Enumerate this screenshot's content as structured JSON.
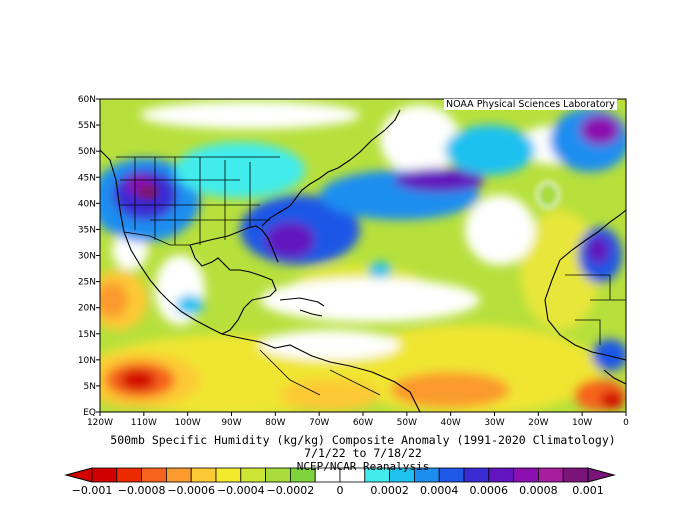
{
  "credit": "NOAA Physical Sciences Laboratory",
  "title": {
    "line1": "500mb Specific Humidity (kg/kg) Composite Anomaly (1991-2020 Climatology)",
    "line2": "7/1/22  to 7/18/22",
    "source": "NCEP/NCAR Reanalysis"
  },
  "map": {
    "lat_range": [
      0,
      60
    ],
    "lon_range": [
      -120,
      0
    ],
    "lat_ticks": [
      "EQ",
      "5N",
      "10N",
      "15N",
      "20N",
      "25N",
      "30N",
      "35N",
      "40N",
      "45N",
      "50N",
      "55N",
      "60N"
    ],
    "lon_ticks": [
      "120W",
      "110W",
      "100W",
      "90W",
      "80W",
      "70W",
      "60W",
      "50W",
      "40W",
      "30W",
      "20W",
      "10W",
      "0"
    ]
  },
  "colorbar": {
    "range": [
      -0.001,
      0.001
    ],
    "labels": [
      "-0.001",
      "-0.0008",
      "-0.0006",
      "-0.0004",
      "-0.0002",
      "0",
      "0.0002",
      "0.0004",
      "0.0006",
      "0.0008",
      "0.001"
    ],
    "colors": [
      "#d10000",
      "#ec2a00",
      "#f6631c",
      "#fb9a2f",
      "#fdc935",
      "#f3ea2e",
      "#cde636",
      "#a8dc3c",
      "#7fd33c",
      "#ffffff",
      "#ffffff",
      "#42ecec",
      "#1ec1f0",
      "#1c8ef0",
      "#1f57e6",
      "#3a2cd2",
      "#6214be",
      "#8c0fb0",
      "#a61e9e",
      "#7a1478"
    ]
  }
}
